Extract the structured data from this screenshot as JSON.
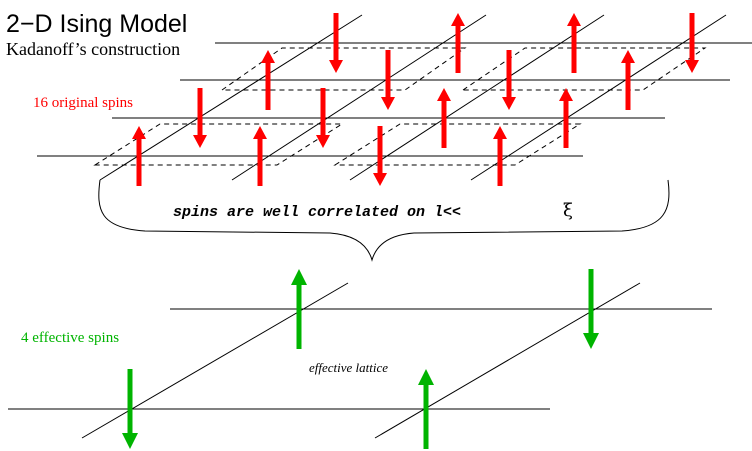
{
  "title": "2−D Ising Model",
  "subtitle": "Kadanoff’s construction",
  "original_label": "16 original spins",
  "effective_label": "4 effective spins",
  "caption": "spins are well correlated on l<<",
  "caption_symbol": "ξ",
  "effective_lattice_label": "effective lattice",
  "colors": {
    "original": "#ff0000",
    "effective": "#00b400",
    "lines": "#000000"
  },
  "original_spins": [
    "down",
    "up",
    "up",
    "down",
    "up",
    "down",
    "down",
    "up",
    "down",
    "down",
    "up",
    "up",
    "up",
    "up",
    "down",
    "up"
  ],
  "effective_spins": [
    "up",
    "down",
    "down",
    "up"
  ]
}
